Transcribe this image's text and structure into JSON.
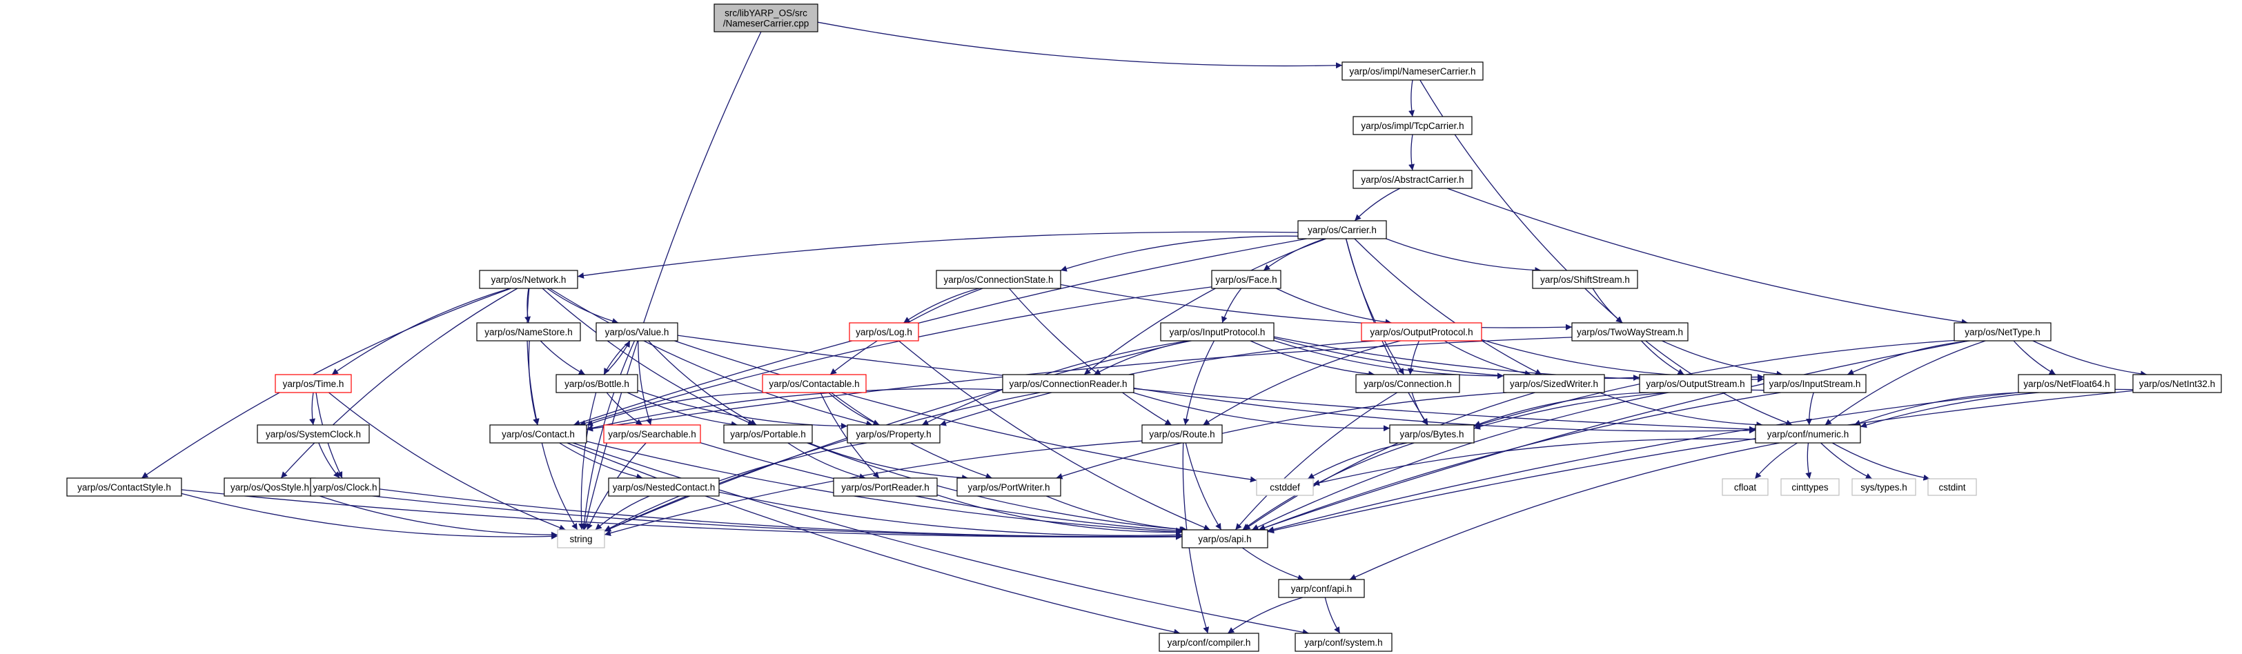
{
  "graph": {
    "nodes": [
      {
        "id": "root",
        "label": "src/libYARP_OS/src\n/NameserCarrier.cpp",
        "style": "root"
      },
      {
        "id": "namesercarrier",
        "label": "yarp/os/impl/NameserCarrier.h",
        "style": "normal"
      },
      {
        "id": "tcpcarrier",
        "label": "yarp/os/impl/TcpCarrier.h",
        "style": "normal"
      },
      {
        "id": "abstractcarrier",
        "label": "yarp/os/AbstractCarrier.h",
        "style": "normal"
      },
      {
        "id": "carrier",
        "label": "yarp/os/Carrier.h",
        "style": "normal"
      },
      {
        "id": "network",
        "label": "yarp/os/Network.h",
        "style": "normal"
      },
      {
        "id": "connectionstate",
        "label": "yarp/os/ConnectionState.h",
        "style": "normal"
      },
      {
        "id": "face",
        "label": "yarp/os/Face.h",
        "style": "normal"
      },
      {
        "id": "shiftstream",
        "label": "yarp/os/ShiftStream.h",
        "style": "normal"
      },
      {
        "id": "twowaystream",
        "label": "yarp/os/TwoWayStream.h",
        "style": "normal"
      },
      {
        "id": "nettype",
        "label": "yarp/os/NetType.h",
        "style": "normal"
      },
      {
        "id": "namestore",
        "label": "yarp/os/NameStore.h",
        "style": "normal"
      },
      {
        "id": "value",
        "label": "yarp/os/Value.h",
        "style": "normal"
      },
      {
        "id": "log",
        "label": "yarp/os/Log.h",
        "style": "red"
      },
      {
        "id": "inputprotocol",
        "label": "yarp/os/InputProtocol.h",
        "style": "normal"
      },
      {
        "id": "outputprotocol",
        "label": "yarp/os/OutputProtocol.h",
        "style": "red"
      },
      {
        "id": "time",
        "label": "yarp/os/Time.h",
        "style": "red"
      },
      {
        "id": "bottle",
        "label": "yarp/os/Bottle.h",
        "style": "normal"
      },
      {
        "id": "contactable",
        "label": "yarp/os/Contactable.h",
        "style": "red"
      },
      {
        "id": "connectionreader",
        "label": "yarp/os/ConnectionReader.h",
        "style": "normal"
      },
      {
        "id": "connection",
        "label": "yarp/os/Connection.h",
        "style": "normal"
      },
      {
        "id": "sizedwriter",
        "label": "yarp/os/SizedWriter.h",
        "style": "normal"
      },
      {
        "id": "outputstream",
        "label": "yarp/os/OutputStream.h",
        "style": "normal"
      },
      {
        "id": "inputstream",
        "label": "yarp/os/InputStream.h",
        "style": "normal"
      },
      {
        "id": "netfloat64",
        "label": "yarp/os/NetFloat64.h",
        "style": "normal"
      },
      {
        "id": "netint32",
        "label": "yarp/os/NetInt32.h",
        "style": "normal"
      },
      {
        "id": "systemclock",
        "label": "yarp/os/SystemClock.h",
        "style": "normal"
      },
      {
        "id": "contact",
        "label": "yarp/os/Contact.h",
        "style": "normal"
      },
      {
        "id": "searchable",
        "label": "yarp/os/Searchable.h",
        "style": "red"
      },
      {
        "id": "portable",
        "label": "yarp/os/Portable.h",
        "style": "normal"
      },
      {
        "id": "property",
        "label": "yarp/os/Property.h",
        "style": "normal"
      },
      {
        "id": "route",
        "label": "yarp/os/Route.h",
        "style": "normal"
      },
      {
        "id": "bytes",
        "label": "yarp/os/Bytes.h",
        "style": "normal"
      },
      {
        "id": "confnumeric",
        "label": "yarp/conf/numeric.h",
        "style": "normal"
      },
      {
        "id": "contactstyle",
        "label": "yarp/os/ContactStyle.h",
        "style": "normal"
      },
      {
        "id": "qosstyle",
        "label": "yarp/os/QosStyle.h",
        "style": "normal"
      },
      {
        "id": "clock",
        "label": "yarp/os/Clock.h",
        "style": "normal"
      },
      {
        "id": "nestedcontact",
        "label": "yarp/os/NestedContact.h",
        "style": "normal"
      },
      {
        "id": "portreader",
        "label": "yarp/os/PortReader.h",
        "style": "normal"
      },
      {
        "id": "portwriter",
        "label": "yarp/os/PortWriter.h",
        "style": "normal"
      },
      {
        "id": "cstddef",
        "label": "cstddef",
        "style": "gray"
      },
      {
        "id": "cfloat",
        "label": "cfloat",
        "style": "gray"
      },
      {
        "id": "cinttypes",
        "label": "cinttypes",
        "style": "gray"
      },
      {
        "id": "systypes",
        "label": "sys/types.h",
        "style": "gray"
      },
      {
        "id": "cstdint",
        "label": "cstdint",
        "style": "gray"
      },
      {
        "id": "string",
        "label": "string",
        "style": "gray"
      },
      {
        "id": "osapi",
        "label": "yarp/os/api.h",
        "style": "normal"
      },
      {
        "id": "confapi",
        "label": "yarp/conf/api.h",
        "style": "normal"
      },
      {
        "id": "compiler",
        "label": "yarp/conf/compiler.h",
        "style": "normal"
      },
      {
        "id": "system",
        "label": "yarp/conf/system.h",
        "style": "normal"
      }
    ],
    "edges": [
      [
        "root",
        "namesercarrier"
      ],
      [
        "root",
        "string"
      ],
      [
        "namesercarrier",
        "tcpcarrier"
      ],
      [
        "namesercarrier",
        "twowaystream"
      ],
      [
        "tcpcarrier",
        "abstractcarrier"
      ],
      [
        "abstractcarrier",
        "carrier"
      ],
      [
        "abstractcarrier",
        "nettype"
      ],
      [
        "carrier",
        "network"
      ],
      [
        "carrier",
        "connectionstate"
      ],
      [
        "carrier",
        "face"
      ],
      [
        "carrier",
        "shiftstream"
      ],
      [
        "carrier",
        "contact"
      ],
      [
        "carrier",
        "connectionreader"
      ],
      [
        "carrier",
        "connection"
      ],
      [
        "carrier",
        "sizedwriter"
      ],
      [
        "carrier",
        "bytes"
      ],
      [
        "network",
        "namestore"
      ],
      [
        "network",
        "value"
      ],
      [
        "network",
        "time"
      ],
      [
        "network",
        "contact"
      ],
      [
        "network",
        "contactstyle"
      ],
      [
        "network",
        "qosstyle"
      ],
      [
        "network",
        "portable"
      ],
      [
        "network",
        "property"
      ],
      [
        "connectionstate",
        "log"
      ],
      [
        "connectionstate",
        "contactable"
      ],
      [
        "connectionstate",
        "route"
      ],
      [
        "connectionstate",
        "twowaystream"
      ],
      [
        "face",
        "inputprotocol"
      ],
      [
        "face",
        "outputprotocol"
      ],
      [
        "face",
        "contact"
      ],
      [
        "shiftstream",
        "twowaystream"
      ],
      [
        "twowaystream",
        "inputstream"
      ],
      [
        "twowaystream",
        "outputstream"
      ],
      [
        "twowaystream",
        "contact"
      ],
      [
        "twowaystream",
        "confnumeric"
      ],
      [
        "nettype",
        "inputstream"
      ],
      [
        "nettype",
        "bytes"
      ],
      [
        "nettype",
        "netfloat64"
      ],
      [
        "nettype",
        "netint32"
      ],
      [
        "nettype",
        "confnumeric"
      ],
      [
        "nettype",
        "osapi"
      ],
      [
        "namestore",
        "bottle"
      ],
      [
        "namestore",
        "contact"
      ],
      [
        "value",
        "bottle"
      ],
      [
        "value",
        "searchable"
      ],
      [
        "value",
        "portable"
      ],
      [
        "value",
        "string"
      ],
      [
        "value",
        "confnumeric"
      ],
      [
        "value",
        "cstddef"
      ],
      [
        "log",
        "osapi"
      ],
      [
        "inputprotocol",
        "connectionreader"
      ],
      [
        "inputprotocol",
        "connection"
      ],
      [
        "inputprotocol",
        "route"
      ],
      [
        "inputprotocol",
        "property"
      ],
      [
        "inputprotocol",
        "inputstream"
      ],
      [
        "inputprotocol",
        "sizedwriter"
      ],
      [
        "inputprotocol",
        "outputstream"
      ],
      [
        "inputprotocol",
        "string"
      ],
      [
        "outputprotocol",
        "connection"
      ],
      [
        "outputprotocol",
        "route"
      ],
      [
        "outputprotocol",
        "sizedwriter"
      ],
      [
        "outputprotocol",
        "inputstream"
      ],
      [
        "outputprotocol",
        "property"
      ],
      [
        "time",
        "systemclock"
      ],
      [
        "time",
        "clock"
      ],
      [
        "time",
        "string"
      ],
      [
        "bottle",
        "value"
      ],
      [
        "bottle",
        "searchable"
      ],
      [
        "bottle",
        "portable"
      ],
      [
        "bottle",
        "property"
      ],
      [
        "bottle",
        "string"
      ],
      [
        "contactable",
        "contact"
      ],
      [
        "contactable",
        "portreader"
      ],
      [
        "contactable",
        "portwriter"
      ],
      [
        "contactable",
        "property"
      ],
      [
        "connectionreader",
        "contact"
      ],
      [
        "connectionreader",
        "bytes"
      ],
      [
        "connectionreader",
        "confnumeric"
      ],
      [
        "connectionreader",
        "string"
      ],
      [
        "connection",
        "bytes"
      ],
      [
        "connection",
        "osapi"
      ],
      [
        "sizedwriter",
        "portwriter"
      ],
      [
        "sizedwriter",
        "osapi"
      ],
      [
        "sizedwriter",
        "confnumeric"
      ],
      [
        "outputstream",
        "osapi"
      ],
      [
        "outputstream",
        "bytes"
      ],
      [
        "inputstream",
        "confnumeric"
      ],
      [
        "inputstream",
        "bytes"
      ],
      [
        "inputstream",
        "osapi"
      ],
      [
        "netfloat64",
        "confnumeric"
      ],
      [
        "netfloat64",
        "osapi"
      ],
      [
        "netint32",
        "confnumeric"
      ],
      [
        "netint32",
        "osapi"
      ],
      [
        "systemclock",
        "clock"
      ],
      [
        "contact",
        "nestedcontact"
      ],
      [
        "contact",
        "string"
      ],
      [
        "contact",
        "compiler"
      ],
      [
        "contact",
        "system"
      ],
      [
        "contact",
        "osapi"
      ],
      [
        "searchable",
        "string"
      ],
      [
        "searchable",
        "osapi"
      ],
      [
        "portable",
        "portreader"
      ],
      [
        "portable",
        "portwriter"
      ],
      [
        "portable",
        "osapi"
      ],
      [
        "property",
        "string"
      ],
      [
        "route",
        "string"
      ],
      [
        "route",
        "osapi"
      ],
      [
        "route",
        "compiler"
      ],
      [
        "bytes",
        "cstddef"
      ],
      [
        "bytes",
        "osapi"
      ],
      [
        "confnumeric",
        "cstddef"
      ],
      [
        "confnumeric",
        "cfloat"
      ],
      [
        "confnumeric",
        "cinttypes"
      ],
      [
        "confnumeric",
        "systypes"
      ],
      [
        "confnumeric",
        "cstdint"
      ],
      [
        "confnumeric",
        "confapi"
      ],
      [
        "contactstyle",
        "string"
      ],
      [
        "contactstyle",
        "osapi"
      ],
      [
        "qosstyle",
        "string"
      ],
      [
        "qosstyle",
        "osapi"
      ],
      [
        "clock",
        "osapi"
      ],
      [
        "nestedcontact",
        "string"
      ],
      [
        "nestedcontact",
        "osapi"
      ],
      [
        "portreader",
        "osapi"
      ],
      [
        "portwriter",
        "osapi"
      ],
      [
        "osapi",
        "confapi"
      ],
      [
        "confapi",
        "compiler"
      ],
      [
        "confapi",
        "system"
      ]
    ]
  }
}
